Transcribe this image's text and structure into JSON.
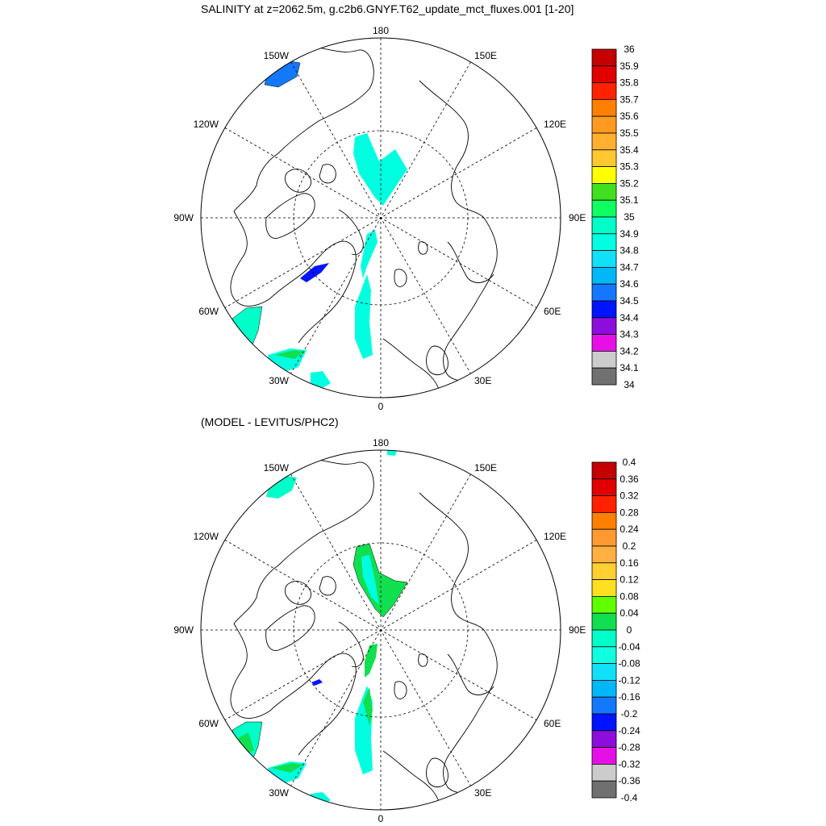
{
  "top_panel": {
    "title": "SALINITY at z=2062.5m, g.c2b6.GNYF.T62_update_mct_fluxes.001 [1-20]",
    "lon_labels": [
      "180",
      "150E",
      "120E",
      "90E",
      "60E",
      "30E",
      "0",
      "30W",
      "60W",
      "90W",
      "120W",
      "150W"
    ],
    "colorbar": {
      "labels": [
        "36",
        "35.9",
        "35.8",
        "35.7",
        "35.6",
        "35.5",
        "35.4",
        "35.3",
        "35.2",
        "35.1",
        "35",
        "34.9",
        "34.8",
        "34.7",
        "34.6",
        "34.5",
        "34.4",
        "34.3",
        "34.2",
        "34.1",
        "34"
      ],
      "colors": [
        "#c40000",
        "#e00000",
        "#ff2200",
        "#ff8000",
        "#ff9a20",
        "#ffb030",
        "#ffc830",
        "#ffff00",
        "#40e020",
        "#10ff60",
        "#00ffc8",
        "#00ffe0",
        "#10e0f8",
        "#00b8f8",
        "#1478ff",
        "#0014ff",
        "#8c0ddc",
        "#e610e6",
        "#cccccc",
        "#707070"
      ]
    }
  },
  "bottom_panel": {
    "title": "(MODEL - LEVITUS/PHC2)",
    "lon_labels": [
      "180",
      "150E",
      "120E",
      "90E",
      "60E",
      "30E",
      "0",
      "30W",
      "60W",
      "90W",
      "120W",
      "150W"
    ],
    "colorbar": {
      "labels": [
        "0.4",
        "0.36",
        "0.32",
        "0.28",
        "0.24",
        "0.2",
        "0.16",
        "0.12",
        "0.08",
        "0.04",
        "0",
        "-0.04",
        "-0.08",
        "-0.12",
        "-0.16",
        "-0.2",
        "-0.24",
        "-0.28",
        "-0.32",
        "-0.36",
        "-0.4"
      ],
      "colors": [
        "#c40000",
        "#e00000",
        "#ff2200",
        "#ff8000",
        "#ff9a30",
        "#ffb040",
        "#ffd030",
        "#ffe020",
        "#60ff00",
        "#10e050",
        "#00ffc8",
        "#10ffe0",
        "#10e0f8",
        "#00b8f8",
        "#1478ff",
        "#0014ff",
        "#8c0ddc",
        "#e610e6",
        "#cccccc",
        "#707070"
      ]
    }
  }
}
